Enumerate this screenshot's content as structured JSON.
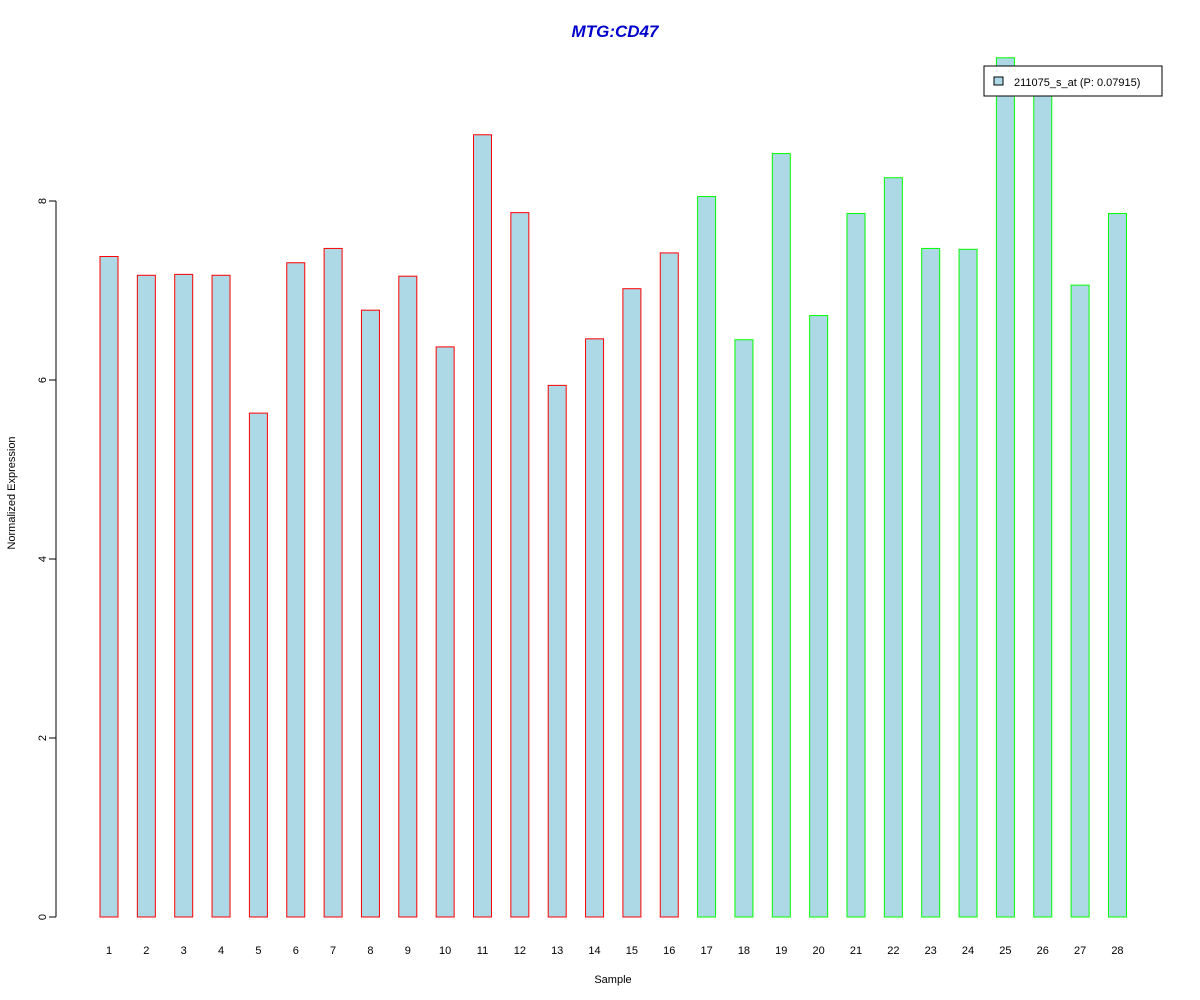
{
  "chart_data": {
    "type": "bar",
    "title": "MTG:CD47",
    "title_color": "#0000CC",
    "xlabel": "Sample",
    "ylabel": "Normalized Expression",
    "categories": [
      "1",
      "2",
      "3",
      "4",
      "5",
      "6",
      "7",
      "8",
      "9",
      "10",
      "11",
      "12",
      "13",
      "14",
      "15",
      "16",
      "17",
      "18",
      "19",
      "20",
      "21",
      "22",
      "23",
      "24",
      "25",
      "26",
      "27",
      "28"
    ],
    "values": [
      7.38,
      7.17,
      7.18,
      7.17,
      5.63,
      7.31,
      7.47,
      6.78,
      7.16,
      6.37,
      8.74,
      7.87,
      5.94,
      6.46,
      7.02,
      7.42,
      8.05,
      6.45,
      8.53,
      6.72,
      7.86,
      8.26,
      7.47,
      7.46,
      9.6,
      9.4,
      7.06,
      7.86
    ],
    "groups": [
      {
        "from": 1,
        "to": 16,
        "border_color": "#FF0000"
      },
      {
        "from": 17,
        "to": 28,
        "border_color": "#00FF00"
      }
    ],
    "bar_fill": "#ADD8E6",
    "y_ticks": [
      0,
      2,
      4,
      6,
      8
    ],
    "ylim": [
      0,
      9.6
    ],
    "grid": false,
    "legend": {
      "position": "top-right",
      "entries": [
        {
          "label": "211075_s_at (P: 0.07915)",
          "color": "#ADD8E6"
        }
      ]
    }
  }
}
